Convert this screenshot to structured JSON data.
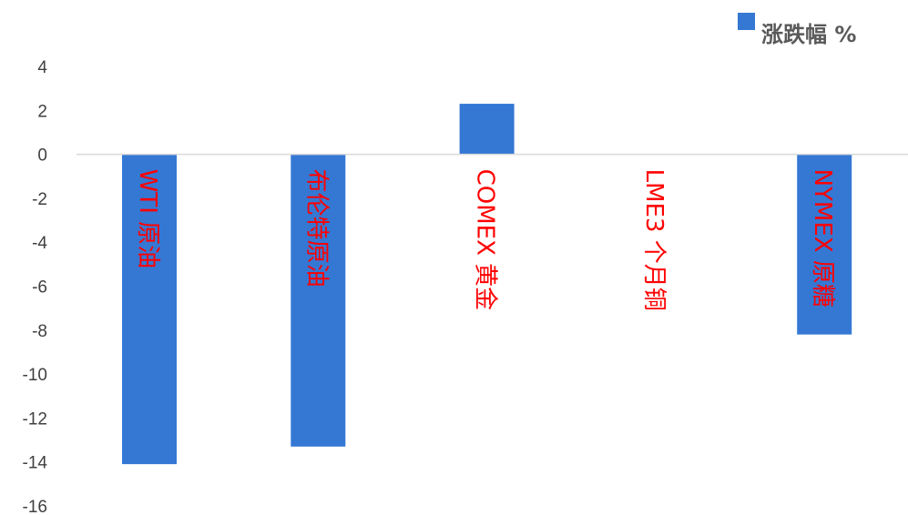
{
  "chart_data": {
    "type": "bar",
    "categories": [
      "WTI 原油",
      "布伦特原油",
      "COMEX 黄金",
      "LME3 个月铜",
      "NYMEX 原糖"
    ],
    "series": [
      {
        "name": "涨跌幅 %",
        "values": [
          -14.1,
          -13.3,
          2.3,
          0.0,
          -8.2
        ]
      }
    ],
    "yticks": [
      4,
      2,
      0,
      -2,
      -4,
      -6,
      -8,
      -10,
      -12,
      -14,
      -16
    ],
    "ylim": [
      -16,
      4
    ],
    "legend": "top-right",
    "grid": false,
    "colors": {
      "bar": "#3478d4",
      "category_label": "#ff0000",
      "axis": "#d9d9d9"
    }
  }
}
